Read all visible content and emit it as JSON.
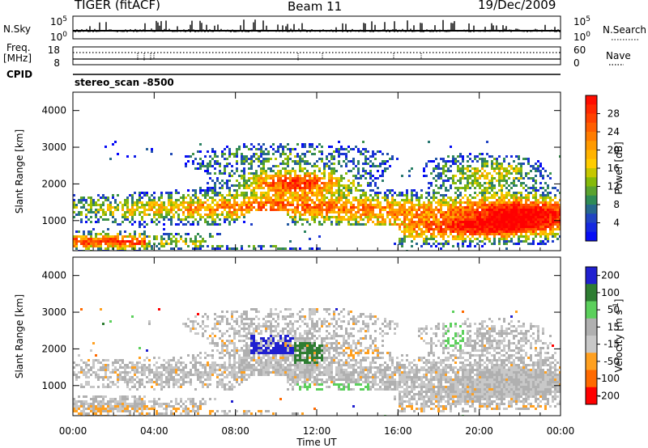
{
  "header": {
    "title": "TIGER (fitACF)",
    "beam": "Beam 11",
    "date": "19/Dec/2009"
  },
  "left_labels": {
    "nsky": "N.Sky",
    "freq": "Freq.",
    "freq_unit": "[MHz]",
    "cpid": "CPID"
  },
  "right_labels": {
    "nsearch": "N.Search",
    "nave": "Nave"
  },
  "scan_label": "stereo_scan -8500",
  "colors": {
    "power": [
      "#ff0000",
      "#ff4400",
      "#ff8800",
      "#ffcc00",
      "#8fbf00",
      "#2e8b57",
      "#1a66cc",
      "#0000ff"
    ],
    "velocity": [
      "#2020d0",
      "#2e7d32",
      "#5cd05c",
      "#b0b0b0",
      "#c8c8c8",
      "#ffa020",
      "#ff6a00",
      "#ff0000"
    ]
  },
  "chart_data": [
    {
      "type": "line",
      "panel": "noise",
      "y_tick_labels": [
        "10^5",
        "10^0"
      ],
      "right_tick_labels": [
        "10^5",
        "10^0"
      ],
      "left_label": "N.Sky",
      "right_label": "N.Search"
    },
    {
      "type": "line",
      "panel": "frequency_nave",
      "y_tick_labels": [
        "18",
        "8"
      ],
      "right_tick_labels": [
        "60",
        "0"
      ],
      "left_label": "Freq. [MHz]",
      "right_label": "Nave",
      "cpid_label": "CPID"
    },
    {
      "type": "heatmap",
      "panel": "power",
      "x": [
        "00:00",
        "04:00",
        "08:00",
        "12:00",
        "16:00",
        "20:00",
        "00:00"
      ],
      "xlim_hours": [
        0,
        24
      ],
      "ylabel": "Slant Range [km]",
      "y_ticks": [
        1000,
        2000,
        3000,
        4000
      ],
      "ylim": [
        180,
        4500
      ],
      "colorbar": {
        "label": "Power [dB]",
        "ticks": [
          4,
          8,
          12,
          16,
          20,
          24,
          28
        ],
        "range": [
          0,
          32
        ]
      }
    },
    {
      "type": "heatmap",
      "panel": "velocity",
      "x": [
        "00:00",
        "04:00",
        "08:00",
        "12:00",
        "16:00",
        "20:00",
        "00:00"
      ],
      "xlim_hours": [
        0,
        24
      ],
      "xlabel": "Time UT",
      "ylabel": "Slant Range [km]",
      "y_ticks": [
        1000,
        2000,
        3000,
        4000
      ],
      "ylim": [
        180,
        4500
      ],
      "colorbar": {
        "label": "Velocity [m s^-1]",
        "ticks": [
          200,
          100,
          50,
          15,
          -15,
          -50,
          -100,
          -200
        ]
      }
    }
  ]
}
